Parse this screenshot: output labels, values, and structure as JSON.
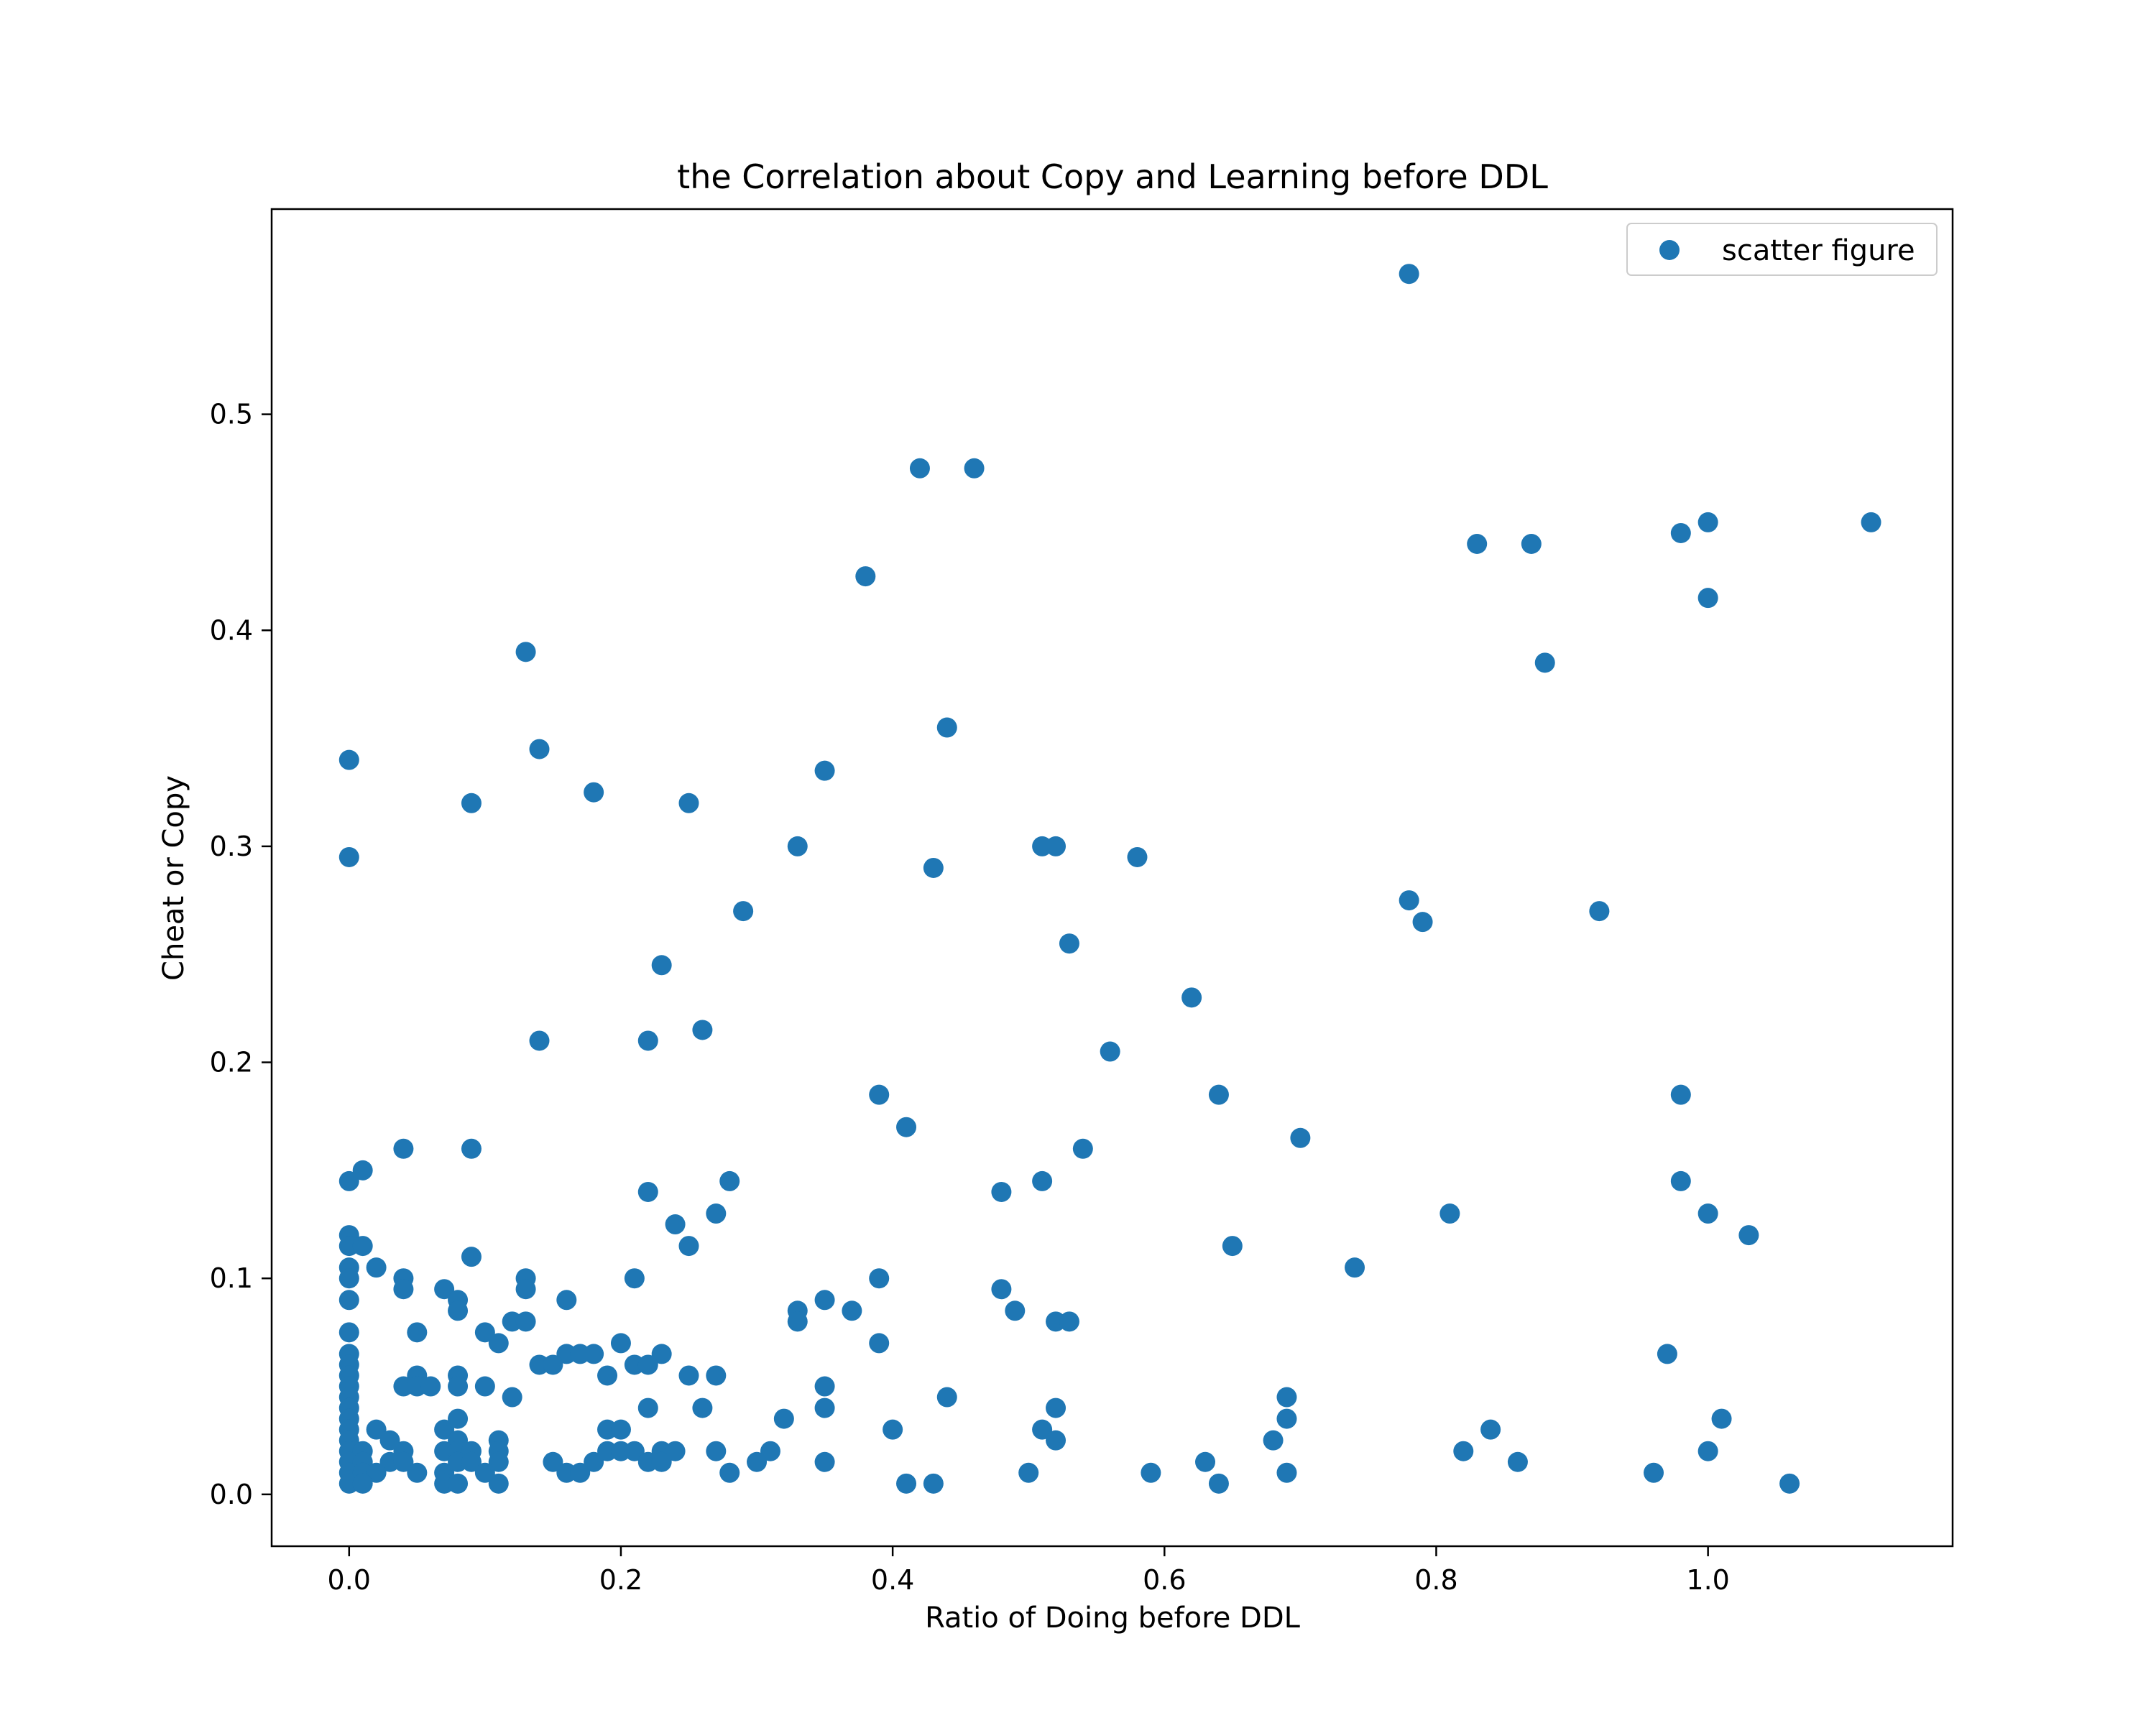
{
  "chart_data": {
    "type": "scatter",
    "title": "the Correlation about Copy and Learning before DDL",
    "xlabel": "Ratio of Doing before DDL",
    "ylabel": "Cheat or Copy",
    "xlim": [
      -0.057,
      1.18
    ],
    "ylim": [
      -0.024,
      0.595
    ],
    "xticks": [
      0.0,
      0.2,
      0.4,
      0.6,
      0.8,
      1.0
    ],
    "xtick_labels": [
      "0.0",
      "0.2",
      "0.4",
      "0.6",
      "0.8",
      "1.0"
    ],
    "yticks": [
      0.0,
      0.1,
      0.2,
      0.3,
      0.4,
      0.5
    ],
    "ytick_labels": [
      "0.0",
      "0.1",
      "0.2",
      "0.3",
      "0.4",
      "0.5"
    ],
    "grid": false,
    "legend": "top-right",
    "color": "#1f77b4",
    "series": [
      {
        "name": "scatter figure",
        "points": [
          [
            0.78,
            0.565
          ],
          [
            0.42,
            0.475
          ],
          [
            0.46,
            0.475
          ],
          [
            1.0,
            0.45
          ],
          [
            1.12,
            0.45
          ],
          [
            0.98,
            0.445
          ],
          [
            0.83,
            0.44
          ],
          [
            0.87,
            0.44
          ],
          [
            0.38,
            0.425
          ],
          [
            1.0,
            0.415
          ],
          [
            0.13,
            0.39
          ],
          [
            0.88,
            0.385
          ],
          [
            0.44,
            0.355
          ],
          [
            0.14,
            0.345
          ],
          [
            0.0,
            0.34
          ],
          [
            0.35,
            0.335
          ],
          [
            0.18,
            0.325
          ],
          [
            0.09,
            0.32
          ],
          [
            0.25,
            0.32
          ],
          [
            0.33,
            0.3
          ],
          [
            0.51,
            0.3
          ],
          [
            0.52,
            0.3
          ],
          [
            0.0,
            0.295
          ],
          [
            0.58,
            0.295
          ],
          [
            0.43,
            0.29
          ],
          [
            0.78,
            0.275
          ],
          [
            0.29,
            0.27
          ],
          [
            0.92,
            0.27
          ],
          [
            0.79,
            0.265
          ],
          [
            0.53,
            0.255
          ],
          [
            0.23,
            0.245
          ],
          [
            0.62,
            0.23
          ],
          [
            0.26,
            0.215
          ],
          [
            0.14,
            0.21
          ],
          [
            0.22,
            0.21
          ],
          [
            0.56,
            0.205
          ],
          [
            0.39,
            0.185
          ],
          [
            0.64,
            0.185
          ],
          [
            0.98,
            0.185
          ],
          [
            0.41,
            0.17
          ],
          [
            0.7,
            0.165
          ],
          [
            0.04,
            0.16
          ],
          [
            0.09,
            0.16
          ],
          [
            0.54,
            0.16
          ],
          [
            0.01,
            0.15
          ],
          [
            0.0,
            0.145
          ],
          [
            0.28,
            0.145
          ],
          [
            0.51,
            0.145
          ],
          [
            0.98,
            0.145
          ],
          [
            0.22,
            0.14
          ],
          [
            0.48,
            0.14
          ],
          [
            0.27,
            0.13
          ],
          [
            0.81,
            0.13
          ],
          [
            1.0,
            0.13
          ],
          [
            0.24,
            0.125
          ],
          [
            0.0,
            0.12
          ],
          [
            1.03,
            0.12
          ],
          [
            0.0,
            0.115
          ],
          [
            0.01,
            0.115
          ],
          [
            0.25,
            0.115
          ],
          [
            0.65,
            0.115
          ],
          [
            0.09,
            0.11
          ],
          [
            0.0,
            0.105
          ],
          [
            0.02,
            0.105
          ],
          [
            0.74,
            0.105
          ],
          [
            0.0,
            0.1
          ],
          [
            0.04,
            0.1
          ],
          [
            0.13,
            0.1
          ],
          [
            0.21,
            0.1
          ],
          [
            0.39,
            0.1
          ],
          [
            0.04,
            0.095
          ],
          [
            0.07,
            0.095
          ],
          [
            0.13,
            0.095
          ],
          [
            0.48,
            0.095
          ],
          [
            0.0,
            0.09
          ],
          [
            0.08,
            0.09
          ],
          [
            0.16,
            0.09
          ],
          [
            0.35,
            0.09
          ],
          [
            0.08,
            0.085
          ],
          [
            0.33,
            0.085
          ],
          [
            0.37,
            0.085
          ],
          [
            0.49,
            0.085
          ],
          [
            0.12,
            0.08
          ],
          [
            0.13,
            0.08
          ],
          [
            0.33,
            0.08
          ],
          [
            0.52,
            0.08
          ],
          [
            0.53,
            0.08
          ],
          [
            0.0,
            0.075
          ],
          [
            0.05,
            0.075
          ],
          [
            0.1,
            0.075
          ],
          [
            0.11,
            0.07
          ],
          [
            0.2,
            0.07
          ],
          [
            0.39,
            0.07
          ],
          [
            0.0,
            0.065
          ],
          [
            0.16,
            0.065
          ],
          [
            0.17,
            0.065
          ],
          [
            0.18,
            0.065
          ],
          [
            0.23,
            0.065
          ],
          [
            0.97,
            0.065
          ],
          [
            0.0,
            0.06
          ],
          [
            0.14,
            0.06
          ],
          [
            0.15,
            0.06
          ],
          [
            0.21,
            0.06
          ],
          [
            0.22,
            0.06
          ],
          [
            0.0,
            0.055
          ],
          [
            0.05,
            0.055
          ],
          [
            0.08,
            0.055
          ],
          [
            0.19,
            0.055
          ],
          [
            0.25,
            0.055
          ],
          [
            0.27,
            0.055
          ],
          [
            0.0,
            0.05
          ],
          [
            0.04,
            0.05
          ],
          [
            0.05,
            0.05
          ],
          [
            0.06,
            0.05
          ],
          [
            0.08,
            0.05
          ],
          [
            0.1,
            0.05
          ],
          [
            0.35,
            0.05
          ],
          [
            0.0,
            0.045
          ],
          [
            0.12,
            0.045
          ],
          [
            0.44,
            0.045
          ],
          [
            0.69,
            0.045
          ],
          [
            0.0,
            0.04
          ],
          [
            0.22,
            0.04
          ],
          [
            0.26,
            0.04
          ],
          [
            0.35,
            0.04
          ],
          [
            0.52,
            0.04
          ],
          [
            0.0,
            0.035
          ],
          [
            0.08,
            0.035
          ],
          [
            0.32,
            0.035
          ],
          [
            0.69,
            0.035
          ],
          [
            1.01,
            0.035
          ],
          [
            0.0,
            0.03
          ],
          [
            0.02,
            0.03
          ],
          [
            0.07,
            0.03
          ],
          [
            0.19,
            0.03
          ],
          [
            0.2,
            0.03
          ],
          [
            0.4,
            0.03
          ],
          [
            0.51,
            0.03
          ],
          [
            0.84,
            0.03
          ],
          [
            0.0,
            0.025
          ],
          [
            0.03,
            0.025
          ],
          [
            0.08,
            0.025
          ],
          [
            0.11,
            0.025
          ],
          [
            0.52,
            0.025
          ],
          [
            0.68,
            0.025
          ],
          [
            0.0,
            0.02
          ],
          [
            0.01,
            0.02
          ],
          [
            0.04,
            0.02
          ],
          [
            0.07,
            0.02
          ],
          [
            0.08,
            0.02
          ],
          [
            0.09,
            0.02
          ],
          [
            0.11,
            0.02
          ],
          [
            0.19,
            0.02
          ],
          [
            0.2,
            0.02
          ],
          [
            0.21,
            0.02
          ],
          [
            0.23,
            0.02
          ],
          [
            0.24,
            0.02
          ],
          [
            0.27,
            0.02
          ],
          [
            0.31,
            0.02
          ],
          [
            0.82,
            0.02
          ],
          [
            1.0,
            0.02
          ],
          [
            0.0,
            0.015
          ],
          [
            0.01,
            0.015
          ],
          [
            0.03,
            0.015
          ],
          [
            0.04,
            0.015
          ],
          [
            0.08,
            0.015
          ],
          [
            0.09,
            0.015
          ],
          [
            0.11,
            0.015
          ],
          [
            0.15,
            0.015
          ],
          [
            0.18,
            0.015
          ],
          [
            0.22,
            0.015
          ],
          [
            0.23,
            0.015
          ],
          [
            0.3,
            0.015
          ],
          [
            0.35,
            0.015
          ],
          [
            0.63,
            0.015
          ],
          [
            0.86,
            0.015
          ],
          [
            0.0,
            0.01
          ],
          [
            0.01,
            0.01
          ],
          [
            0.02,
            0.01
          ],
          [
            0.05,
            0.01
          ],
          [
            0.07,
            0.01
          ],
          [
            0.1,
            0.01
          ],
          [
            0.16,
            0.01
          ],
          [
            0.17,
            0.01
          ],
          [
            0.28,
            0.01
          ],
          [
            0.5,
            0.01
          ],
          [
            0.59,
            0.01
          ],
          [
            0.69,
            0.01
          ],
          [
            0.96,
            0.01
          ],
          [
            0.0,
            0.005
          ],
          [
            0.01,
            0.005
          ],
          [
            0.07,
            0.005
          ],
          [
            0.08,
            0.005
          ],
          [
            0.11,
            0.005
          ],
          [
            0.41,
            0.005
          ],
          [
            0.43,
            0.005
          ],
          [
            0.64,
            0.005
          ],
          [
            1.06,
            0.005
          ]
        ]
      }
    ]
  }
}
